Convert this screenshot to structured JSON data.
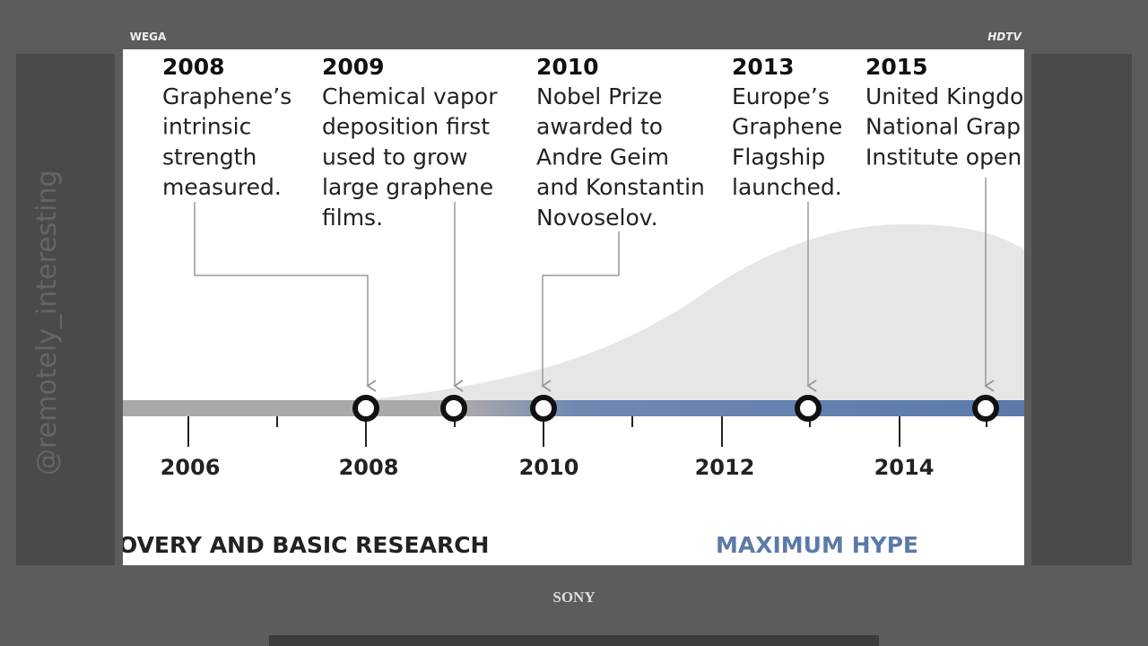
{
  "brand_top_left": "WEGA",
  "brand_top_right": "HDTV",
  "brand_bottom": "SONY",
  "watermark": "@remotely_interesting",
  "events": [
    {
      "year": "2008",
      "lines": [
        "Graphene’s",
        "intrinsic",
        "strength",
        "measured."
      ]
    },
    {
      "year": "2009",
      "lines": [
        "Chemical vapor",
        "deposition first",
        "used to grow",
        "large graphene",
        "films."
      ]
    },
    {
      "year": "2010",
      "lines": [
        "Nobel Prize",
        "awarded to",
        "Andre Geim",
        "and Konstantin",
        "Novoselov."
      ]
    },
    {
      "year": "2013",
      "lines": [
        "Europe’s",
        "Graphene",
        "Flagship",
        "launched."
      ]
    },
    {
      "year": "2015",
      "lines": [
        "United Kingdo",
        "National Grap",
        "Institute open"
      ]
    }
  ],
  "axis_labels": [
    "2006",
    "2008",
    "2010",
    "2012",
    "2014"
  ],
  "phases": [
    "OVERY AND BASIC RESEARCH",
    "MAXIMUM HYPE"
  ]
}
